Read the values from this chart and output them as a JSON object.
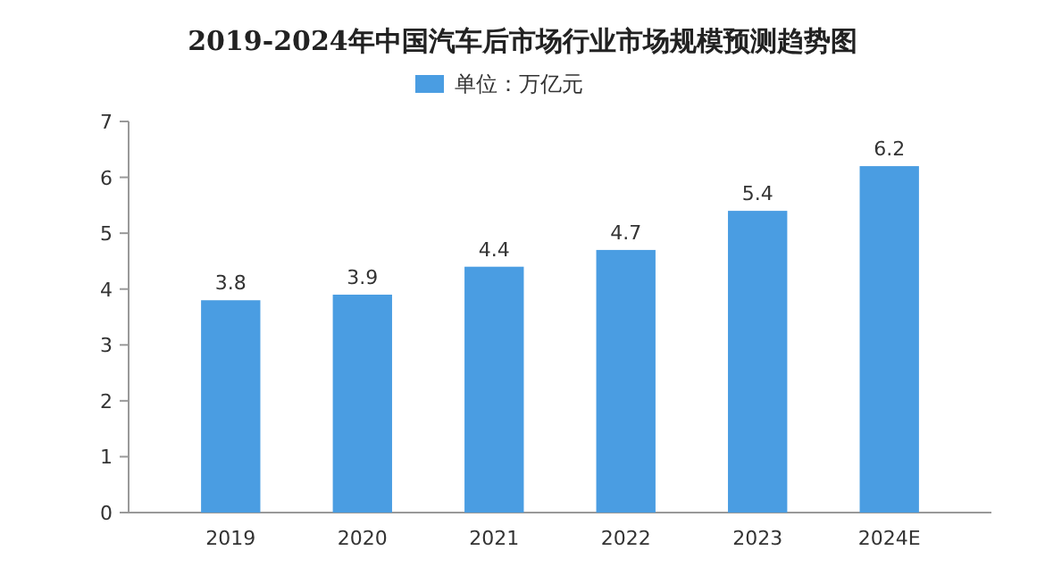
{
  "chart_data": {
    "type": "bar",
    "title": "2019-2024年中国汽车后市场行业市场规模预测趋势图",
    "categories": [
      "2019",
      "2020",
      "2021",
      "2022",
      "2023",
      "2024E"
    ],
    "series": [
      {
        "name": "单位：万亿元",
        "color": "#4a9de2",
        "values": [
          3.8,
          3.9,
          4.4,
          4.7,
          5.4,
          6.2
        ]
      }
    ],
    "ylim": [
      0,
      7
    ],
    "yticks": [
      0,
      1,
      2,
      3,
      4,
      5,
      6,
      7
    ],
    "data_labels": true,
    "legend": "top",
    "grid": false
  }
}
